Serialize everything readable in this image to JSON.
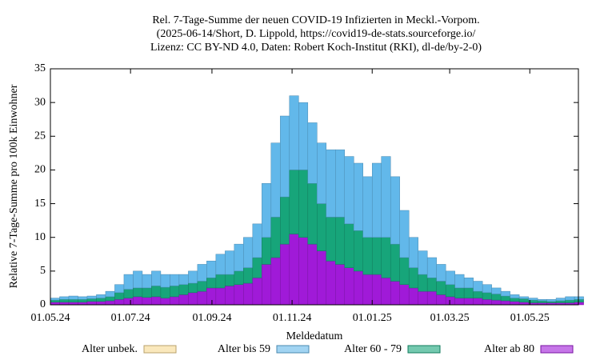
{
  "chart_data": {
    "type": "stacked-bar",
    "title": [
      "Rel. 7-Tage-Summe der neuen COVID-19 Infizierten in Meckl.-Vorpom.",
      "(2025-06-14/Short, D. Lippold, https://covid19-de-stats.sourceforge.io/",
      "Lizenz: CC BY-ND 4.0, Daten: Robert Koch-Institut (RKI), dl-de/by-2-0)"
    ],
    "x_label": "Meldedatum",
    "y_label": "Relative 7-Tage-Summe pro 100k Einwohner",
    "x": [
      "2024-05-01",
      "2024-05-08",
      "2024-05-15",
      "2024-05-22",
      "2024-05-29",
      "2024-06-05",
      "2024-06-12",
      "2024-06-19",
      "2024-06-26",
      "2024-07-03",
      "2024-07-10",
      "2024-07-17",
      "2024-07-24",
      "2024-07-31",
      "2024-08-07",
      "2024-08-14",
      "2024-08-21",
      "2024-08-28",
      "2024-09-04",
      "2024-09-11",
      "2024-09-18",
      "2024-09-25",
      "2024-10-02",
      "2024-10-09",
      "2024-10-16",
      "2024-10-23",
      "2024-10-30",
      "2024-11-06",
      "2024-11-13",
      "2024-11-20",
      "2024-11-27",
      "2024-12-04",
      "2024-12-11",
      "2024-12-18",
      "2024-12-25",
      "2025-01-01",
      "2025-01-08",
      "2025-01-15",
      "2025-01-22",
      "2025-01-29",
      "2025-02-05",
      "2025-02-12",
      "2025-02-19",
      "2025-02-26",
      "2025-03-05",
      "2025-03-12",
      "2025-03-19",
      "2025-03-26",
      "2025-04-02",
      "2025-04-09",
      "2025-04-16",
      "2025-04-23",
      "2025-04-30",
      "2025-05-07",
      "2025-05-14",
      "2025-05-21",
      "2025-05-28",
      "2025-06-04"
    ],
    "xlim": [
      "2024-05-01",
      "2025-06-07"
    ],
    "xticks": [
      {
        "value": "2024-05-01",
        "label": "01.05.24"
      },
      {
        "value": "2024-07-01",
        "label": "01.07.24"
      },
      {
        "value": "2024-09-01",
        "label": "01.09.24"
      },
      {
        "value": "2024-11-01",
        "label": "01.11.24"
      },
      {
        "value": "2025-01-01",
        "label": "01.01.25"
      },
      {
        "value": "2025-03-01",
        "label": "01.03.25"
      },
      {
        "value": "2025-05-01",
        "label": "01.05.25"
      }
    ],
    "ylim": [
      0,
      35
    ],
    "yticks": [
      0,
      5,
      10,
      15,
      20,
      25,
      30,
      35
    ],
    "series": [
      {
        "name": "Alter unbek.",
        "color": "#f7d890",
        "values": [
          0,
          0,
          0,
          0,
          0,
          0,
          0,
          0,
          0,
          0,
          0,
          0,
          0,
          0,
          0,
          0,
          0,
          0,
          0,
          0,
          0,
          0,
          0,
          0,
          0,
          0,
          0,
          0,
          0,
          0,
          0,
          0,
          0,
          0,
          0,
          0,
          0,
          0,
          0,
          0,
          0,
          0,
          0,
          0,
          0,
          0,
          0,
          0,
          0,
          0,
          0,
          0,
          0,
          0,
          0,
          0,
          0,
          0
        ]
      },
      {
        "name": "Alter bis 59",
        "color": "#62b8ea",
        "values": [
          0.3,
          0.4,
          0.5,
          0.4,
          0.4,
          0.5,
          0.8,
          1.2,
          2.2,
          2.5,
          2,
          2.2,
          1.9,
          1.7,
          1.5,
          1.8,
          2.5,
          2.5,
          3,
          3.5,
          4,
          4.5,
          5,
          8,
          11,
          12,
          11,
          10,
          9,
          9,
          10,
          10,
          10,
          10,
          9,
          11,
          12,
          10,
          7,
          4.5,
          3.5,
          3,
          2.5,
          2,
          2,
          1.5,
          1.5,
          1.2,
          0.9,
          0.7,
          0.5,
          0.3,
          0.3,
          0.2,
          0.3,
          0.4,
          0.5,
          0.4
        ]
      },
      {
        "name": "Alter 60 - 79",
        "color": "#17a57a",
        "values": [
          0.3,
          0.4,
          0.4,
          0.4,
          0.4,
          0.5,
          0.6,
          1.0,
          1.3,
          1.3,
          1.4,
          1.6,
          1.6,
          1.6,
          1.5,
          1.4,
          1.5,
          1.5,
          2,
          1.7,
          2,
          2.3,
          3,
          4,
          6,
          7,
          9.5,
          10,
          9,
          7,
          6.5,
          7,
          6.5,
          6,
          5.5,
          5.5,
          6,
          5.5,
          4,
          3,
          2.5,
          2,
          2,
          1.8,
          1.5,
          1.5,
          1,
          1,
          0.9,
          0.7,
          0.5,
          0.5,
          0.4,
          0.3,
          0.2,
          0.3,
          0.4,
          0.4
        ]
      },
      {
        "name": "Alter ab 80",
        "color": "#a01ad8",
        "values": [
          0.4,
          0.4,
          0.4,
          0.4,
          0.5,
          0.5,
          0.6,
          0.8,
          1.0,
          1.2,
          1.1,
          1.2,
          1.0,
          1.2,
          1.5,
          1.8,
          2,
          2.5,
          2.5,
          2.8,
          3,
          3.2,
          4,
          6,
          7,
          9,
          10.5,
          10,
          9,
          8,
          6.5,
          6,
          5.5,
          5,
          4.5,
          4.5,
          4,
          3.5,
          3,
          2.5,
          2,
          2,
          1.5,
          1.2,
          1,
          1,
          1,
          0.8,
          0.7,
          0.6,
          0.5,
          0.4,
          0.3,
          0.3,
          0.3,
          0.3,
          0.3,
          0.4
        ]
      }
    ]
  }
}
